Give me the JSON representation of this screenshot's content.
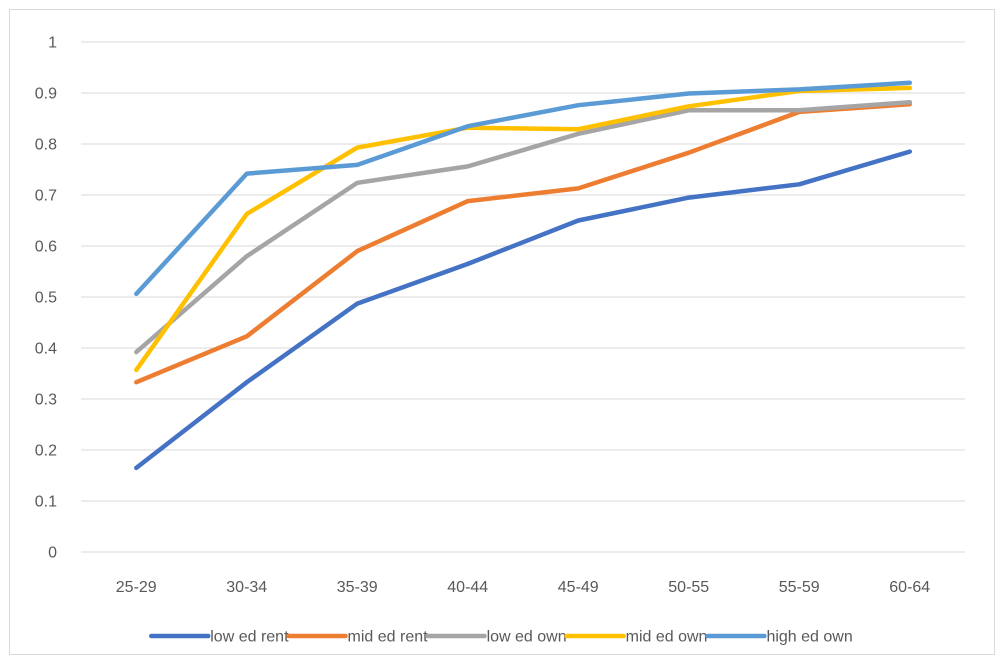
{
  "chart_data": {
    "type": "line",
    "title": "",
    "xlabel": "",
    "ylabel": "",
    "categories": [
      "25-29",
      "30-34",
      "35-39",
      "40-44",
      "45-49",
      "50-55",
      "55-59",
      "60-64"
    ],
    "ylim": [
      0,
      1
    ],
    "yticks": [
      "0",
      "0.1",
      "0.2",
      "0.3",
      "0.4",
      "0.5",
      "0.6",
      "0.7",
      "0.8",
      "0.9",
      "1"
    ],
    "grid": true,
    "legend_position": "bottom",
    "series": [
      {
        "name": "low ed rent",
        "color": "#4472c4",
        "values": [
          0.165,
          0.333,
          0.487,
          0.565,
          0.65,
          0.695,
          0.721,
          0.785
        ]
      },
      {
        "name": "mid ed rent",
        "color": "#ed7d31",
        "values": [
          0.333,
          0.423,
          0.59,
          0.688,
          0.713,
          0.783,
          0.863,
          0.878
        ]
      },
      {
        "name": "low ed own",
        "color": "#a5a5a5",
        "values": [
          0.392,
          0.58,
          0.724,
          0.756,
          0.82,
          0.866,
          0.866,
          0.882
        ]
      },
      {
        "name": "mid ed own",
        "color": "#ffc000",
        "values": [
          0.357,
          0.663,
          0.793,
          0.832,
          0.829,
          0.874,
          0.904,
          0.91
        ]
      },
      {
        "name": "high ed own",
        "color": "#5b9bd5",
        "values": [
          0.506,
          0.742,
          0.759,
          0.835,
          0.876,
          0.899,
          0.907,
          0.92
        ]
      }
    ]
  }
}
